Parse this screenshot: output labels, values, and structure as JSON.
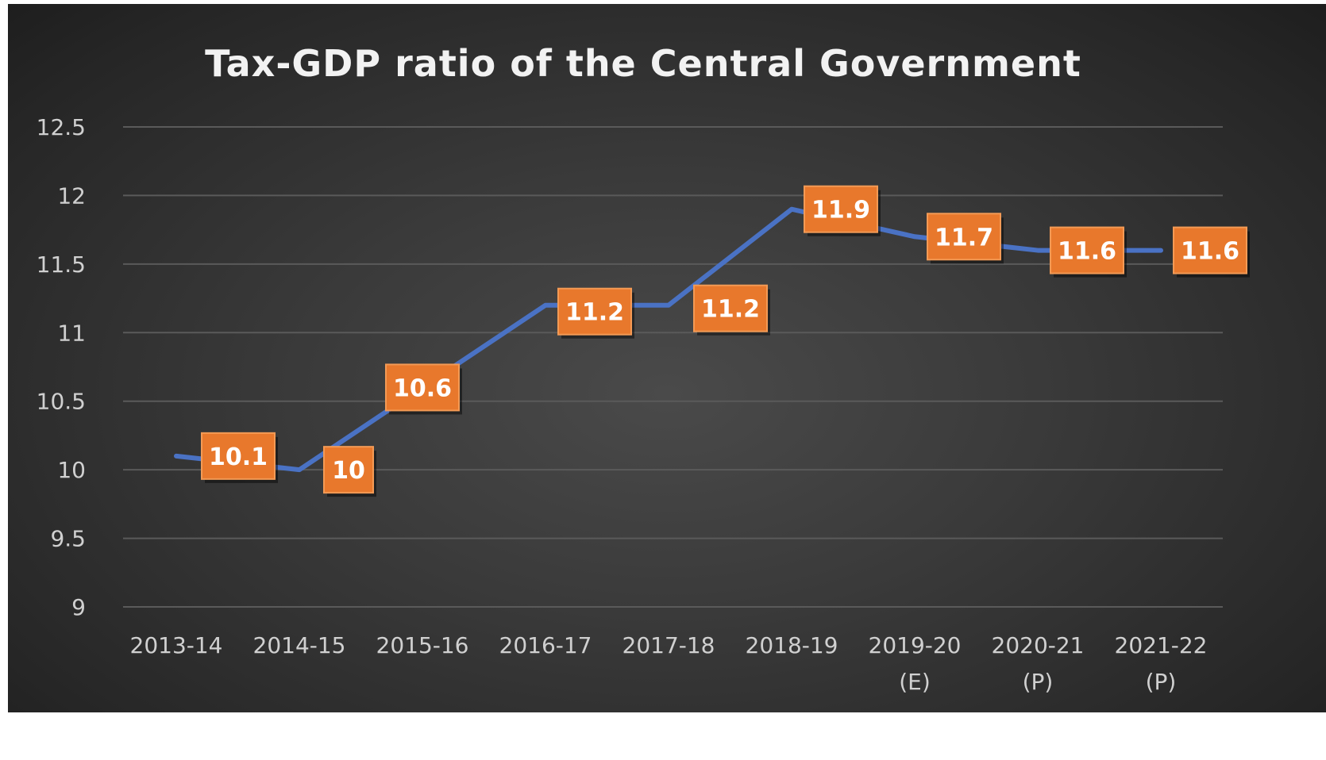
{
  "chart_data": {
    "type": "line",
    "title": "Tax-GDP ratio of the Central Government",
    "xlabel": "",
    "ylabel": "",
    "categories": [
      "2013-14",
      "2014-15",
      "2015-16",
      "2016-17",
      "2017-18",
      "2018-19",
      "2019-20 (E)",
      "2020-21 (P)",
      "2021-22 (P)"
    ],
    "category_lines": [
      [
        "2013-14"
      ],
      [
        "2014-15"
      ],
      [
        "2015-16"
      ],
      [
        "2016-17"
      ],
      [
        "2017-18"
      ],
      [
        "2018-19"
      ],
      [
        "2019-20",
        "(E)"
      ],
      [
        "2020-21",
        "(P)"
      ],
      [
        "2021-22",
        "(P)"
      ]
    ],
    "series": [
      {
        "values": [
          10.1,
          10,
          10.6,
          11.2,
          11.2,
          11.9,
          11.7,
          11.6,
          11.6
        ],
        "data_labels": [
          "10.1",
          "10",
          "10.6",
          "11.2",
          "11.2",
          "11.9",
          "11.7",
          "11.6",
          "11.6"
        ],
        "line_color": "#4a72c4",
        "label_color": "#e8782c"
      }
    ],
    "yticks": [
      "9",
      "9.5",
      "10",
      "10.5",
      "11",
      "11.5",
      "12",
      "12.5"
    ],
    "ylim": [
      9,
      12.5
    ],
    "grid": true,
    "legend": "none"
  }
}
